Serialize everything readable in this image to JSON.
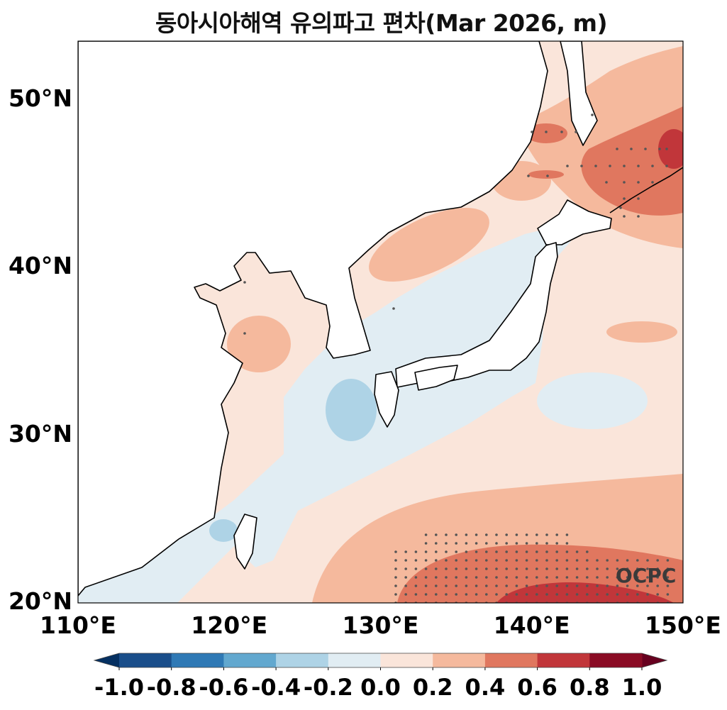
{
  "title": "동아시아해역 유의파고 편차(Mar 2026, m)",
  "watermark": "OCPC",
  "map": {
    "extent": {
      "lon": [
        110,
        150
      ],
      "lat": [
        20,
        53.5
      ]
    },
    "lat_ticks": [
      {
        "value": 50,
        "label": "50°N"
      },
      {
        "value": 40,
        "label": "40°N"
      },
      {
        "value": 30,
        "label": "30°N"
      },
      {
        "value": 20,
        "label": "20°N"
      }
    ],
    "lon_ticks": [
      {
        "value": 110,
        "label": "110°E"
      },
      {
        "value": 120,
        "label": "120°E"
      },
      {
        "value": 130,
        "label": "130°E"
      },
      {
        "value": 140,
        "label": "140°E"
      },
      {
        "value": 150,
        "label": "150°E"
      }
    ]
  },
  "colorbar": {
    "ticks": [
      "-1.0",
      "-0.8",
      "-0.6",
      "-0.4",
      "-0.2",
      "0.0",
      "0.2",
      "0.4",
      "0.6",
      "0.8",
      "1.0"
    ],
    "colors": [
      "#1a4e8a",
      "#2f79b5",
      "#62a8cf",
      "#aed3e6",
      "#e1edf3",
      "#fae5da",
      "#f5b99d",
      "#e0775f",
      "#c1363a",
      "#8a0b24"
    ],
    "extend_low": "#053061",
    "extend_high": "#67001f"
  }
}
